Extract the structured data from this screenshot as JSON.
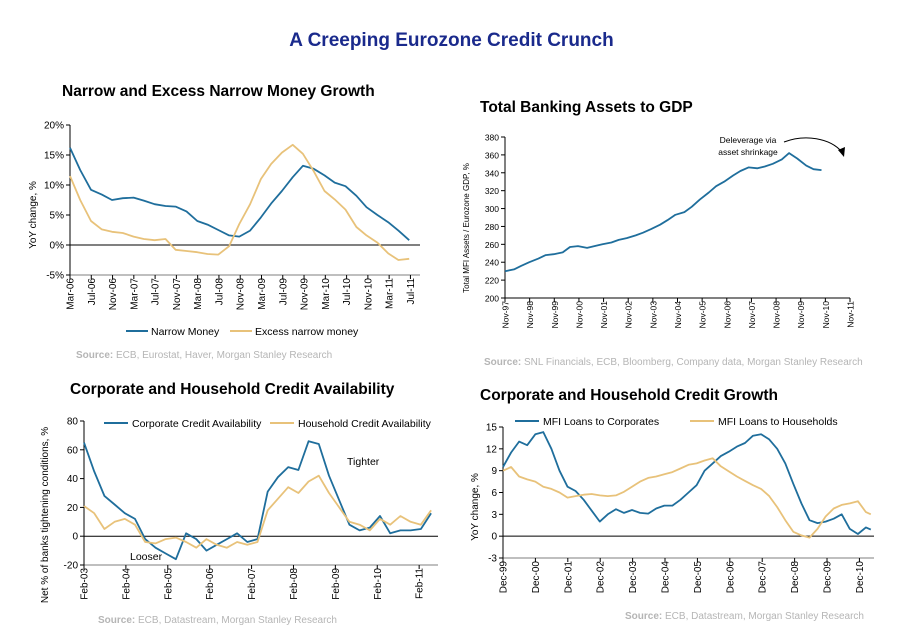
{
  "title": "A Creeping Eurozone Credit Crunch",
  "colors": {
    "blue": "#1f6e9c",
    "tan": "#e8c27a",
    "title": "#1a2a8c",
    "source": "#b5b5b5"
  },
  "chart_data": [
    {
      "id": "money",
      "type": "line",
      "title": "Narrow and Excess Narrow Money Growth",
      "ylabel": "YoY change, %",
      "ylim": [
        -5,
        20
      ],
      "yticks": [
        "20%",
        "15%",
        "10%",
        "5%",
        "0%",
        "-5%"
      ],
      "ytick_values": [
        20,
        15,
        10,
        5,
        0,
        -5
      ],
      "x_range": [
        2006.17,
        2011.67
      ],
      "xticks": [
        "Mar-06",
        "Jul-06",
        "Nov-06",
        "Mar-07",
        "Jul-07",
        "Nov-07",
        "Mar-08",
        "Jul-08",
        "Nov-08",
        "Mar-09",
        "Jul-09",
        "Nov-09",
        "Mar-10",
        "Jul-10",
        "Nov-10",
        "Mar-11",
        "Jul-11"
      ],
      "grid": false,
      "legend": "bottom",
      "source_label": "Source:",
      "source_text": " ECB, Eurostat, Haver, Morgan Stanley Research",
      "series": [
        {
          "name": "Narrow Money",
          "color": "blue",
          "x": [
            2006.17,
            2006.33,
            2006.5,
            2006.67,
            2006.83,
            2007.0,
            2007.17,
            2007.33,
            2007.5,
            2007.67,
            2007.83,
            2008.0,
            2008.17,
            2008.33,
            2008.5,
            2008.67,
            2008.83,
            2009.0,
            2009.17,
            2009.33,
            2009.5,
            2009.67,
            2009.83,
            2010.0,
            2010.17,
            2010.33,
            2010.5,
            2010.67,
            2010.83,
            2011.0,
            2011.17,
            2011.33,
            2011.5
          ],
          "y": [
            16.2,
            12.5,
            9.2,
            8.4,
            7.5,
            7.8,
            7.9,
            7.4,
            6.8,
            6.5,
            6.4,
            5.6,
            4.0,
            3.4,
            2.5,
            1.6,
            1.4,
            2.4,
            4.6,
            6.9,
            9.0,
            11.3,
            13.2,
            12.7,
            11.6,
            10.4,
            9.8,
            8.2,
            6.3,
            5.0,
            3.8,
            2.4,
            0.8
          ]
        },
        {
          "name": "Excess narrow money",
          "color": "tan",
          "x": [
            2006.17,
            2006.33,
            2006.5,
            2006.67,
            2006.83,
            2007.0,
            2007.17,
            2007.33,
            2007.5,
            2007.67,
            2007.83,
            2008.0,
            2008.17,
            2008.33,
            2008.5,
            2008.67,
            2008.83,
            2009.0,
            2009.17,
            2009.33,
            2009.5,
            2009.67,
            2009.83,
            2010.0,
            2010.17,
            2010.33,
            2010.5,
            2010.67,
            2010.83,
            2011.0,
            2011.17,
            2011.33,
            2011.5
          ],
          "y": [
            11.5,
            7.5,
            4.0,
            2.6,
            2.2,
            2.0,
            1.4,
            1.0,
            0.8,
            1.0,
            -0.8,
            -1.0,
            -1.2,
            -1.5,
            -1.6,
            -0.2,
            3.5,
            6.8,
            11.0,
            13.5,
            15.4,
            16.7,
            15.2,
            12.3,
            9.0,
            7.6,
            5.9,
            3.0,
            1.6,
            0.4,
            -1.4,
            -2.5,
            -2.3
          ]
        }
      ]
    },
    {
      "id": "assets",
      "type": "line",
      "title": "Total Banking Assets to GDP",
      "ylabel": "Total MFI Assets / Eurozone GDP, %",
      "ylim": [
        200,
        380
      ],
      "yticks": [
        "380",
        "360",
        "340",
        "320",
        "300",
        "280",
        "260",
        "240",
        "220",
        "200"
      ],
      "ytick_values": [
        380,
        360,
        340,
        320,
        300,
        280,
        260,
        240,
        220,
        200
      ],
      "x_range": [
        1997.83,
        2012.0
      ],
      "xticks": [
        "Nov-97",
        "Nov-98",
        "Nov-99",
        "Nov-00",
        "Nov-01",
        "Nov-02",
        "Nov-03",
        "Nov-04",
        "Nov-05",
        "Nov-06",
        "Nov-07",
        "Nov-08",
        "Nov-09",
        "Nov-10",
        "Nov-11"
      ],
      "grid": false,
      "annotation": [
        "Deleverage via",
        "asset shrinkage"
      ],
      "source_label": "Source:",
      "source_text": " SNL Financials, ECB, Bloomberg, Company data, Morgan Stanley Research",
      "series": [
        {
          "name": "",
          "color": "blue",
          "x": [
            1997.83,
            1998.2,
            1998.5,
            1998.83,
            1999.2,
            1999.5,
            1999.83,
            2000.2,
            2000.5,
            2000.83,
            2001.2,
            2001.5,
            2001.83,
            2002.2,
            2002.5,
            2002.83,
            2003.2,
            2003.5,
            2003.83,
            2004.2,
            2004.5,
            2004.83,
            2005.2,
            2005.5,
            2005.83,
            2006.2,
            2006.5,
            2006.83,
            2007.2,
            2007.5,
            2007.83,
            2008.2,
            2008.5,
            2008.83,
            2009.2,
            2009.5,
            2009.83,
            2010.2,
            2010.5,
            2010.83
          ],
          "y": [
            230,
            232,
            236,
            240,
            244,
            248,
            249,
            251,
            257,
            258,
            256,
            258,
            260,
            262,
            265,
            267,
            270,
            273,
            277,
            282,
            287,
            293,
            296,
            302,
            310,
            318,
            325,
            330,
            337,
            342,
            346,
            345,
            347,
            350,
            355,
            362,
            356,
            348,
            344,
            343
          ]
        }
      ]
    },
    {
      "id": "availability",
      "type": "line",
      "title": "Corporate and Household Credit Availability",
      "ylabel": "Net % of banks tightening conditions, %",
      "ylim": [
        -20,
        80
      ],
      "yticks": [
        "80",
        "60",
        "40",
        "20",
        "0",
        "-20"
      ],
      "ytick_values": [
        80,
        60,
        40,
        20,
        0,
        -20
      ],
      "x_range": [
        2003.08,
        2011.75
      ],
      "xticks": [
        "Feb-03",
        "Feb-04",
        "Feb-05",
        "Feb-06",
        "Feb-07",
        "Feb-08",
        "Feb-09",
        "Feb-10",
        "Feb-11"
      ],
      "grid": false,
      "legend": "top",
      "annotations": [
        "Tighter",
        "Looser"
      ],
      "source_label": "Source:",
      "source_text": " ECB, Datastream, Morgan Stanley Research",
      "series": [
        {
          "name": "Corporate Credit Availability",
          "color": "blue",
          "x": [
            2003.08,
            2003.33,
            2003.58,
            2003.83,
            2004.08,
            2004.33,
            2004.58,
            2004.83,
            2005.08,
            2005.33,
            2005.58,
            2005.83,
            2006.08,
            2006.33,
            2006.58,
            2006.83,
            2007.08,
            2007.33,
            2007.58,
            2007.83,
            2008.08,
            2008.33,
            2008.58,
            2008.83,
            2009.08,
            2009.33,
            2009.58,
            2009.83,
            2010.08,
            2010.33,
            2010.58,
            2010.83,
            2011.08,
            2011.33,
            2011.58
          ],
          "y": [
            65,
            45,
            28,
            22,
            16,
            12,
            -2,
            -8,
            -12,
            -16,
            2,
            -2,
            -10,
            -6,
            -2,
            2,
            -4,
            -2,
            31,
            41,
            48,
            46,
            66,
            64,
            42,
            25,
            8,
            4,
            6,
            14,
            2,
            4,
            4,
            5,
            16
          ]
        },
        {
          "name": "Household Credit Availability",
          "color": "tan",
          "x": [
            2003.08,
            2003.33,
            2003.58,
            2003.83,
            2004.08,
            2004.33,
            2004.58,
            2004.83,
            2005.08,
            2005.33,
            2005.58,
            2005.83,
            2006.08,
            2006.33,
            2006.58,
            2006.83,
            2007.08,
            2007.33,
            2007.58,
            2007.83,
            2008.08,
            2008.33,
            2008.58,
            2008.83,
            2009.08,
            2009.33,
            2009.58,
            2009.83,
            2010.08,
            2010.33,
            2010.58,
            2010.83,
            2011.08,
            2011.33,
            2011.58
          ],
          "y": [
            21,
            16,
            5,
            10,
            12,
            8,
            -4,
            -5,
            -2,
            -1,
            -4,
            -8,
            -2,
            -6,
            -8,
            -4,
            -6,
            -4,
            18,
            26,
            34,
            30,
            38,
            42,
            30,
            20,
            10,
            8,
            4,
            12,
            8,
            14,
            10,
            8,
            18
          ]
        }
      ]
    },
    {
      "id": "growth",
      "type": "line",
      "title": "Corporate and Household Credit Growth",
      "ylabel": "YoY change, %",
      "ylim": [
        -3,
        15
      ],
      "yticks": [
        "15",
        "12",
        "9",
        "6",
        "3",
        "0",
        "-3"
      ],
      "ytick_values": [
        15,
        12,
        9,
        6,
        3,
        0,
        -3
      ],
      "x_range": [
        1999.92,
        2011.42
      ],
      "xticks": [
        "Dec-99",
        "Dec-00",
        "Dec-01",
        "Dec-02",
        "Dec-03",
        "Dec-04",
        "Dec-05",
        "Dec-06",
        "Dec-07",
        "Dec-08",
        "Dec-09",
        "Dec-10"
      ],
      "grid": false,
      "legend": "top",
      "source_label": "Source:",
      "source_text": " ECB, Datastream, Morgan Stanley Research",
      "series": [
        {
          "name": "MFI Loans to Corporates",
          "color": "blue",
          "x": [
            1999.92,
            2000.17,
            2000.42,
            2000.67,
            2000.92,
            2001.17,
            2001.42,
            2001.67,
            2001.92,
            2002.17,
            2002.42,
            2002.67,
            2002.92,
            2003.17,
            2003.42,
            2003.67,
            2003.92,
            2004.17,
            2004.42,
            2004.67,
            2004.92,
            2005.17,
            2005.42,
            2005.67,
            2005.92,
            2006.17,
            2006.42,
            2006.67,
            2006.92,
            2007.17,
            2007.42,
            2007.67,
            2007.92,
            2008.17,
            2008.42,
            2008.67,
            2008.92,
            2009.17,
            2009.42,
            2009.67,
            2009.92,
            2010.17,
            2010.42,
            2010.67,
            2010.92,
            2011.17,
            2011.32
          ],
          "y": [
            9.5,
            11.5,
            13.0,
            12.5,
            14.0,
            14.3,
            12.0,
            9.0,
            6.8,
            6.2,
            5.0,
            3.5,
            2.0,
            3.0,
            3.7,
            3.2,
            3.6,
            3.2,
            3.1,
            3.8,
            4.2,
            4.2,
            5.0,
            6.0,
            7.0,
            9.0,
            10.0,
            11.0,
            11.6,
            12.3,
            12.8,
            13.8,
            14.0,
            13.3,
            12.0,
            10.0,
            7.2,
            4.5,
            2.2,
            1.8,
            2.0,
            2.4,
            3.0,
            1.0,
            0.3,
            1.2,
            0.9
          ]
        },
        {
          "name": "MFI Loans to Households",
          "color": "tan",
          "x": [
            1999.92,
            2000.17,
            2000.42,
            2000.67,
            2000.92,
            2001.17,
            2001.42,
            2001.67,
            2001.92,
            2002.17,
            2002.42,
            2002.67,
            2002.92,
            2003.17,
            2003.42,
            2003.67,
            2003.92,
            2004.17,
            2004.42,
            2004.67,
            2004.92,
            2005.17,
            2005.42,
            2005.67,
            2005.92,
            2006.17,
            2006.42,
            2006.67,
            2006.92,
            2007.17,
            2007.42,
            2007.67,
            2007.92,
            2008.17,
            2008.42,
            2008.67,
            2008.92,
            2009.17,
            2009.42,
            2009.67,
            2009.92,
            2010.17,
            2010.42,
            2010.67,
            2010.92,
            2011.17,
            2011.32
          ],
          "y": [
            9.0,
            9.5,
            8.2,
            7.8,
            7.5,
            6.8,
            6.5,
            6.0,
            5.3,
            5.5,
            5.7,
            5.8,
            5.6,
            5.5,
            5.6,
            6.1,
            6.8,
            7.5,
            8.0,
            8.2,
            8.5,
            8.8,
            9.3,
            9.8,
            10.0,
            10.4,
            10.7,
            9.6,
            8.9,
            8.2,
            7.6,
            7.0,
            6.5,
            5.5,
            4.0,
            2.2,
            0.6,
            0.1,
            -0.2,
            1.0,
            2.7,
            3.8,
            4.3,
            4.5,
            4.8,
            3.3,
            3.0
          ]
        }
      ]
    }
  ]
}
